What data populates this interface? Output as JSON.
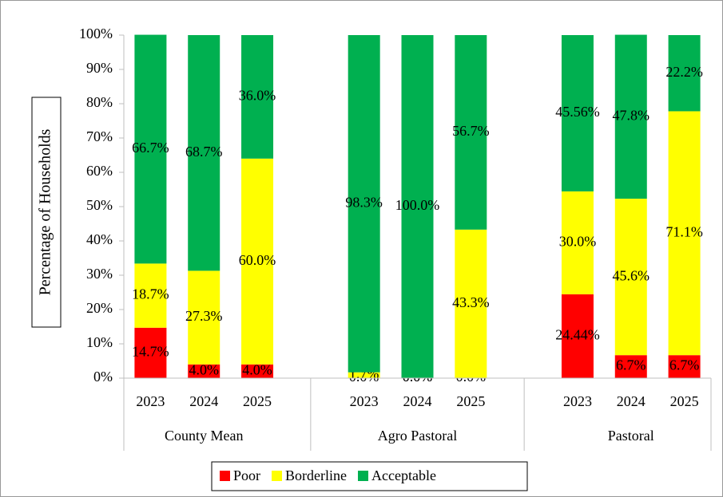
{
  "chart_data": {
    "type": "stacked_bar",
    "y_axis_label": "Percentage of Households",
    "groups": [
      {
        "name": "County Mean",
        "categories": [
          "2023",
          "2024",
          "2025"
        ]
      },
      {
        "name": "Agro Pastoral",
        "categories": [
          "2023",
          "2024",
          "2025"
        ]
      },
      {
        "name": "Pastoral",
        "categories": [
          "2023",
          "2024",
          "2025"
        ]
      }
    ],
    "series": [
      {
        "name": "Poor",
        "color": "#ff0000",
        "values": [
          14.7,
          4.0,
          4.0,
          0.0,
          0.0,
          0.0,
          24.44,
          6.7,
          6.7
        ],
        "value_labels": [
          "14.7%",
          "4.0%",
          "4.0%",
          "0.0%",
          "0.0%",
          "0.0%",
          "24.44%",
          "6.7%",
          "6.7%"
        ]
      },
      {
        "name": "Borderline",
        "color": "#ffff00",
        "values": [
          18.7,
          27.3,
          60.0,
          1.7,
          0.0,
          43.3,
          30.0,
          45.6,
          71.1
        ],
        "value_labels": [
          "18.7%",
          "27.3%",
          "60.0%",
          "1.7%",
          "0.0%",
          "43.3%",
          "30.0%",
          "45.6%",
          "71.1%"
        ]
      },
      {
        "name": "Acceptable",
        "color": "#00b050",
        "values": [
          66.7,
          68.7,
          36.0,
          98.3,
          100.0,
          56.7,
          45.56,
          47.8,
          22.2
        ],
        "value_labels": [
          "66.7%",
          "68.7%",
          "36.0%",
          "98.3%",
          "100.0%",
          "56.7%",
          "45.56%",
          "47.8%",
          "22.2%"
        ]
      }
    ],
    "ylim": [
      0,
      100
    ],
    "yticks": [
      {
        "value": 0,
        "label": "0%"
      },
      {
        "value": 10,
        "label": "10%"
      },
      {
        "value": 20,
        "label": "20%"
      },
      {
        "value": 30,
        "label": "30%"
      },
      {
        "value": 40,
        "label": "40%"
      },
      {
        "value": 50,
        "label": "50%"
      },
      {
        "value": 60,
        "label": "60%"
      },
      {
        "value": 70,
        "label": "70%"
      },
      {
        "value": 80,
        "label": "80%"
      },
      {
        "value": 90,
        "label": "90%"
      },
      {
        "value": 100,
        "label": "100%"
      }
    ],
    "legend": "bottom"
  }
}
